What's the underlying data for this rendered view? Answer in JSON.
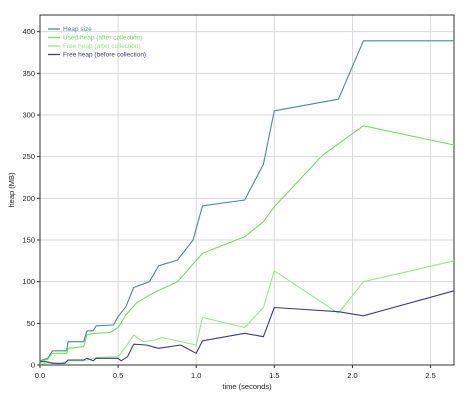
{
  "chart_data": {
    "type": "line",
    "title": "",
    "xlabel": "time (seconds)",
    "ylabel": "heap (MB)",
    "xlim": [
      0,
      2.65
    ],
    "ylim": [
      0,
      420
    ],
    "x_ticks": [
      "0.0",
      "0.5",
      "1.0",
      "1.5",
      "2.0",
      "2.5"
    ],
    "y_ticks": [
      "0",
      "50",
      "100",
      "150",
      "200",
      "250",
      "300",
      "350",
      "400"
    ],
    "grid": true,
    "legend_position": "top-left",
    "series": [
      {
        "name": "Heap size",
        "color": "#4a8a96",
        "points": [
          [
            0.0,
            5
          ],
          [
            0.05,
            8
          ],
          [
            0.08,
            17
          ],
          [
            0.17,
            17
          ],
          [
            0.18,
            28
          ],
          [
            0.28,
            28
          ],
          [
            0.3,
            41
          ],
          [
            0.34,
            41
          ],
          [
            0.36,
            47
          ],
          [
            0.47,
            48
          ],
          [
            0.5,
            58
          ],
          [
            0.55,
            70
          ],
          [
            0.6,
            93
          ],
          [
            0.7,
            100
          ],
          [
            0.76,
            119
          ],
          [
            0.88,
            126
          ],
          [
            0.98,
            150
          ],
          [
            1.04,
            191
          ],
          [
            1.31,
            198
          ],
          [
            1.43,
            241
          ],
          [
            1.5,
            305
          ],
          [
            1.91,
            319
          ],
          [
            2.07,
            389
          ],
          [
            2.65,
            389
          ]
        ]
      },
      {
        "name": "Used heap (after collection)",
        "color": "#6ee05a",
        "points": [
          [
            0.0,
            4
          ],
          [
            0.05,
            7
          ],
          [
            0.08,
            14
          ],
          [
            0.17,
            14
          ],
          [
            0.18,
            20
          ],
          [
            0.28,
            22
          ],
          [
            0.3,
            36
          ],
          [
            0.34,
            38
          ],
          [
            0.36,
            38
          ],
          [
            0.45,
            39
          ],
          [
            0.5,
            45
          ],
          [
            0.55,
            60
          ],
          [
            0.62,
            75
          ],
          [
            0.74,
            88
          ],
          [
            0.88,
            100
          ],
          [
            1.04,
            134
          ],
          [
            1.31,
            154
          ],
          [
            1.43,
            172
          ],
          [
            1.5,
            190
          ],
          [
            1.81,
            252
          ],
          [
            2.07,
            287
          ],
          [
            2.65,
            264
          ]
        ]
      },
      {
        "name": "Free heap (after collection)",
        "color": "#90ec86",
        "points": [
          [
            0.0,
            1
          ],
          [
            0.08,
            3
          ],
          [
            0.12,
            1
          ],
          [
            0.18,
            5
          ],
          [
            0.28,
            5
          ],
          [
            0.32,
            7
          ],
          [
            0.36,
            9
          ],
          [
            0.5,
            10
          ],
          [
            0.55,
            22
          ],
          [
            0.6,
            36
          ],
          [
            0.66,
            28
          ],
          [
            0.74,
            30
          ],
          [
            0.78,
            33
          ],
          [
            1.0,
            24
          ],
          [
            1.04,
            57
          ],
          [
            1.31,
            45
          ],
          [
            1.43,
            69
          ],
          [
            1.5,
            113
          ],
          [
            1.91,
            62
          ],
          [
            2.07,
            100
          ],
          [
            2.65,
            125
          ]
        ]
      },
      {
        "name": "Free heap (before collection)",
        "color": "#3b3b85",
        "points": [
          [
            0.0,
            4
          ],
          [
            0.04,
            4
          ],
          [
            0.08,
            2
          ],
          [
            0.16,
            2
          ],
          [
            0.18,
            6
          ],
          [
            0.28,
            6
          ],
          [
            0.3,
            8
          ],
          [
            0.34,
            5
          ],
          [
            0.36,
            8
          ],
          [
            0.5,
            8
          ],
          [
            0.52,
            5
          ],
          [
            0.56,
            10
          ],
          [
            0.6,
            25
          ],
          [
            0.68,
            24
          ],
          [
            0.76,
            20
          ],
          [
            0.9,
            24
          ],
          [
            1.0,
            14
          ],
          [
            1.04,
            29
          ],
          [
            1.31,
            38
          ],
          [
            1.43,
            34
          ],
          [
            1.5,
            69
          ],
          [
            1.91,
            64
          ],
          [
            2.07,
            59
          ],
          [
            2.65,
            89
          ]
        ]
      }
    ]
  }
}
